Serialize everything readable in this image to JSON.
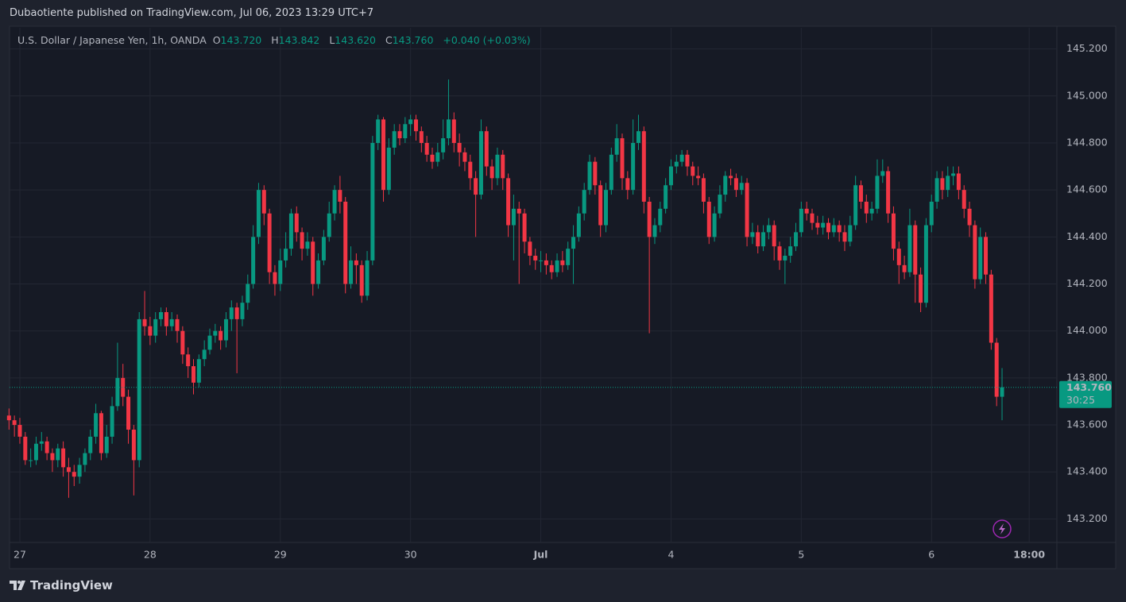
{
  "header": "Dubaotiente published on TradingView.com, Jul 06, 2023 13:29 UTC+7",
  "footer": "TradingView",
  "chart_data": {
    "type": "candlestick",
    "title": "U.S. Dollar / Japanese Yen, 1h, OANDA",
    "ohlc_legend": [
      {
        "key": "O",
        "value": "143.720"
      },
      {
        "key": "H",
        "value": "143.842"
      },
      {
        "key": "L",
        "value": "143.620"
      },
      {
        "key": "C",
        "value": "143.760"
      }
    ],
    "change": "+0.040 (+0.03%)",
    "up_color": "#089981",
    "down_color": "#f23645",
    "grid": true,
    "last_price": {
      "value": 143.76,
      "label": "143.760"
    },
    "countdown": "30:25",
    "ylim": [
      143.1,
      145.29
    ],
    "yticks": [
      {
        "value": 143.2,
        "label": "143.200"
      },
      {
        "value": 143.4,
        "label": "143.400"
      },
      {
        "value": 143.6,
        "label": "143.600"
      },
      {
        "value": 143.8,
        "label": "143.800"
      },
      {
        "value": 144.0,
        "label": "144.000"
      },
      {
        "value": 144.2,
        "label": "144.200"
      },
      {
        "value": 144.4,
        "label": "144.400"
      },
      {
        "value": 144.6,
        "label": "144.600"
      },
      {
        "value": 144.8,
        "label": "144.800"
      },
      {
        "value": 145.0,
        "label": "145.000"
      },
      {
        "value": 145.2,
        "label": "145.200"
      }
    ],
    "xlim": [
      0.1,
      193.1
    ],
    "xticks": [
      {
        "value": 2,
        "label": "27"
      },
      {
        "value": 26,
        "label": "28"
      },
      {
        "value": 50,
        "label": "29"
      },
      {
        "value": 74,
        "label": "30"
      },
      {
        "value": 98,
        "label": "Jul"
      },
      {
        "value": 122,
        "label": "4"
      },
      {
        "value": 146,
        "label": "5"
      },
      {
        "value": 170,
        "label": "6"
      },
      {
        "value": 188,
        "label": "18:00"
      }
    ],
    "open": [
      143.64,
      143.62,
      143.6,
      143.55,
      143.45,
      143.45,
      143.52,
      143.53,
      143.48,
      143.45,
      143.5,
      143.42,
      143.4,
      143.38,
      143.43,
      143.48,
      143.55,
      143.65,
      143.48,
      143.55,
      143.68,
      143.8,
      143.72,
      143.58,
      143.45,
      144.05,
      144.02,
      143.98,
      144.05,
      144.08,
      144.02,
      144.05,
      144.0,
      143.9,
      143.85,
      143.78,
      143.88,
      143.92,
      143.98,
      144.0,
      143.96,
      144.05,
      144.1,
      144.05,
      144.12,
      144.2,
      144.4,
      144.6,
      144.5,
      144.25,
      144.2,
      144.3,
      144.35,
      144.5,
      144.42,
      144.35,
      144.38,
      144.2,
      144.3,
      144.4,
      144.5,
      144.6,
      144.55,
      144.2,
      144.3,
      144.28,
      144.15,
      144.3,
      144.8,
      144.9,
      144.6,
      144.78,
      144.85,
      144.82,
      144.88,
      144.9,
      144.85,
      144.8,
      144.75,
      144.72,
      144.76,
      144.82,
      144.9,
      144.8,
      144.76,
      144.72,
      144.65,
      144.58,
      144.85,
      144.7,
      144.65,
      144.75,
      144.65,
      144.45,
      144.52,
      144.5,
      144.38,
      144.32,
      144.3,
      144.3,
      144.28,
      144.25,
      144.3,
      144.28,
      144.35,
      144.4,
      144.5,
      144.6,
      144.72,
      144.62,
      144.45,
      144.6,
      144.75,
      144.82,
      144.65,
      144.6,
      144.8,
      144.85,
      144.55,
      144.4,
      144.45,
      144.52,
      144.62,
      144.7,
      144.72,
      144.75,
      144.7,
      144.66,
      144.65,
      144.55,
      144.4,
      144.5,
      144.58,
      144.66,
      144.65,
      144.6,
      144.63,
      144.4,
      144.42,
      144.36,
      144.42,
      144.45,
      144.36,
      144.3,
      144.32,
      144.36,
      144.42,
      144.52,
      144.5,
      144.46,
      144.44,
      144.46,
      144.42,
      144.45,
      144.42,
      144.38,
      144.45,
      144.62,
      144.55,
      144.5,
      144.52,
      144.66,
      144.68,
      144.5,
      144.35,
      144.28,
      144.25,
      144.45,
      144.24,
      144.12,
      144.45,
      144.55,
      144.65,
      144.6,
      144.66,
      144.67,
      144.6,
      144.52,
      144.45,
      144.22,
      144.4,
      144.24,
      143.95,
      143.72
    ],
    "high": [
      143.67,
      143.64,
      143.63,
      143.57,
      143.5,
      143.55,
      143.57,
      143.55,
      143.5,
      143.52,
      143.53,
      143.46,
      143.43,
      143.46,
      143.5,
      143.58,
      143.69,
      143.66,
      143.6,
      143.72,
      143.95,
      143.86,
      143.75,
      143.6,
      144.08,
      144.17,
      144.06,
      144.08,
      144.1,
      144.1,
      144.08,
      144.07,
      144.02,
      143.93,
      143.88,
      143.9,
      143.96,
      144.01,
      144.03,
      144.02,
      144.08,
      144.13,
      144.12,
      144.15,
      144.24,
      144.45,
      144.63,
      144.62,
      144.52,
      144.28,
      144.35,
      144.42,
      144.52,
      144.53,
      144.44,
      144.42,
      144.4,
      144.33,
      144.43,
      144.55,
      144.62,
      144.66,
      144.57,
      144.36,
      144.33,
      144.3,
      144.34,
      144.83,
      144.92,
      144.91,
      144.82,
      144.88,
      144.88,
      144.91,
      144.92,
      144.92,
      144.87,
      144.83,
      144.78,
      144.8,
      144.9,
      145.07,
      144.93,
      144.84,
      144.78,
      144.75,
      144.68,
      144.9,
      144.87,
      144.73,
      144.78,
      144.77,
      144.67,
      144.58,
      144.55,
      144.52,
      144.4,
      144.35,
      144.34,
      144.33,
      144.3,
      144.33,
      144.34,
      144.38,
      144.45,
      144.53,
      144.63,
      144.75,
      144.74,
      144.64,
      144.63,
      144.78,
      144.88,
      144.84,
      144.68,
      144.9,
      144.92,
      144.87,
      144.57,
      144.48,
      144.55,
      144.65,
      144.73,
      144.75,
      144.77,
      144.77,
      144.72,
      144.7,
      144.67,
      144.57,
      144.53,
      144.62,
      144.68,
      144.69,
      144.67,
      144.66,
      144.65,
      144.46,
      144.45,
      144.45,
      144.48,
      144.47,
      144.38,
      144.35,
      144.4,
      144.46,
      144.55,
      144.55,
      144.52,
      144.49,
      144.49,
      144.48,
      144.48,
      144.47,
      144.45,
      144.49,
      144.66,
      144.64,
      144.58,
      144.55,
      144.73,
      144.73,
      144.7,
      144.53,
      144.38,
      144.32,
      144.52,
      144.47,
      144.27,
      144.48,
      144.58,
      144.68,
      144.68,
      144.7,
      144.7,
      144.7,
      144.62,
      144.55,
      144.47,
      144.44,
      144.42,
      144.26,
      143.97,
      143.842
    ],
    "low": [
      143.58,
      143.55,
      143.52,
      143.43,
      143.42,
      143.43,
      143.49,
      143.45,
      143.4,
      143.42,
      143.38,
      143.29,
      143.34,
      143.35,
      143.4,
      143.45,
      143.52,
      143.45,
      143.46,
      143.52,
      143.66,
      143.68,
      143.52,
      143.3,
      143.42,
      143.98,
      143.94,
      143.95,
      144.02,
      143.98,
      144.0,
      143.95,
      143.86,
      143.8,
      143.73,
      143.76,
      143.85,
      143.9,
      143.95,
      143.92,
      143.93,
      144.0,
      143.82,
      144.02,
      144.09,
      144.18,
      144.37,
      144.45,
      144.2,
      144.15,
      144.17,
      144.27,
      144.32,
      144.38,
      144.3,
      144.32,
      144.15,
      144.18,
      144.28,
      144.38,
      144.47,
      144.5,
      144.16,
      144.18,
      144.2,
      144.12,
      144.13,
      144.28,
      144.77,
      144.55,
      144.58,
      144.75,
      144.79,
      144.8,
      144.83,
      144.81,
      144.76,
      144.72,
      144.69,
      144.7,
      144.73,
      144.79,
      144.76,
      144.7,
      144.68,
      144.6,
      144.4,
      144.56,
      144.66,
      144.6,
      144.62,
      144.6,
      144.4,
      144.3,
      144.2,
      144.33,
      144.28,
      144.26,
      144.25,
      144.24,
      144.22,
      144.23,
      144.25,
      144.26,
      144.2,
      144.38,
      144.47,
      144.58,
      144.58,
      144.4,
      144.42,
      144.58,
      144.72,
      144.6,
      144.56,
      144.58,
      144.77,
      144.5,
      143.99,
      144.37,
      144.42,
      144.5,
      144.6,
      144.67,
      144.7,
      144.66,
      144.62,
      144.62,
      144.5,
      144.37,
      144.38,
      144.48,
      144.55,
      144.62,
      144.57,
      144.58,
      144.36,
      144.37,
      144.33,
      144.34,
      144.39,
      144.3,
      144.26,
      144.2,
      144.29,
      144.34,
      144.4,
      144.47,
      144.43,
      144.41,
      144.41,
      144.39,
      144.4,
      144.38,
      144.34,
      144.36,
      144.43,
      144.52,
      144.46,
      144.47,
      144.5,
      144.63,
      144.46,
      144.3,
      144.2,
      144.22,
      144.23,
      144.12,
      144.08,
      144.1,
      144.42,
      144.52,
      144.56,
      144.57,
      144.62,
      144.56,
      144.48,
      144.4,
      144.18,
      144.2,
      144.2,
      143.92,
      143.68,
      143.62
    ],
    "close": [
      143.62,
      143.6,
      143.55,
      143.45,
      143.45,
      143.52,
      143.53,
      143.48,
      143.45,
      143.5,
      143.42,
      143.4,
      143.38,
      143.43,
      143.48,
      143.55,
      143.65,
      143.48,
      143.55,
      143.68,
      143.8,
      143.72,
      143.58,
      143.45,
      144.05,
      144.02,
      143.98,
      144.05,
      144.08,
      144.02,
      144.05,
      144.0,
      143.9,
      143.85,
      143.78,
      143.88,
      143.92,
      143.98,
      144.0,
      143.96,
      144.05,
      144.1,
      144.05,
      144.12,
      144.2,
      144.4,
      144.6,
      144.5,
      144.25,
      144.2,
      144.3,
      144.35,
      144.5,
      144.42,
      144.35,
      144.38,
      144.2,
      144.3,
      144.4,
      144.5,
      144.6,
      144.55,
      144.2,
      144.3,
      144.28,
      144.15,
      144.3,
      144.8,
      144.9,
      144.6,
      144.78,
      144.85,
      144.82,
      144.88,
      144.9,
      144.85,
      144.8,
      144.75,
      144.72,
      144.76,
      144.82,
      144.9,
      144.8,
      144.76,
      144.72,
      144.65,
      144.58,
      144.85,
      144.7,
      144.65,
      144.75,
      144.65,
      144.45,
      144.52,
      144.5,
      144.38,
      144.32,
      144.3,
      144.3,
      144.28,
      144.25,
      144.3,
      144.28,
      144.35,
      144.4,
      144.5,
      144.6,
      144.72,
      144.62,
      144.45,
      144.6,
      144.75,
      144.82,
      144.65,
      144.6,
      144.8,
      144.85,
      144.55,
      144.4,
      144.45,
      144.52,
      144.62,
      144.7,
      144.72,
      144.75,
      144.7,
      144.66,
      144.65,
      144.55,
      144.4,
      144.5,
      144.58,
      144.66,
      144.65,
      144.6,
      144.63,
      144.4,
      144.42,
      144.36,
      144.42,
      144.45,
      144.36,
      144.3,
      144.32,
      144.36,
      144.42,
      144.52,
      144.5,
      144.46,
      144.44,
      144.46,
      144.42,
      144.45,
      144.42,
      144.38,
      144.45,
      144.62,
      144.55,
      144.5,
      144.52,
      144.66,
      144.68,
      144.5,
      144.35,
      144.28,
      144.25,
      144.45,
      144.24,
      144.12,
      144.45,
      144.55,
      144.65,
      144.6,
      144.66,
      144.67,
      144.6,
      144.52,
      144.45,
      144.22,
      144.4,
      144.24,
      143.95,
      143.72,
      143.76
    ]
  }
}
